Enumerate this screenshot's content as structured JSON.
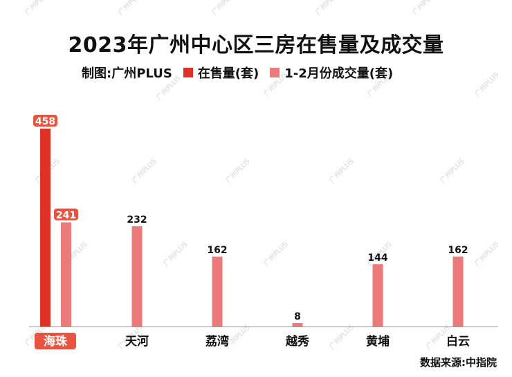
{
  "title": "2023年广州中心区三房在售量及成交量",
  "legend": {
    "maker": "制图:广州PLUS",
    "series": [
      {
        "label": "在售量(套)",
        "color": "#e03127"
      },
      {
        "label": "1-2月份成交量(套)",
        "color": "#ec7a7a"
      }
    ]
  },
  "source": "数据来源:中指院",
  "watermark": "广州PLUS",
  "chart_data": {
    "type": "bar",
    "title": "2023年广州中心区三房在售量及成交量",
    "categories": [
      "海珠",
      "天河",
      "荔湾",
      "越秀",
      "黄埔",
      "白云"
    ],
    "series": [
      {
        "name": "在售量(套)",
        "values": [
          458,
          null,
          null,
          null,
          null,
          null
        ],
        "color": "#e03127"
      },
      {
        "name": "1-2月份成交量(套)",
        "values": [
          241,
          232,
          162,
          8,
          144,
          162
        ],
        "color": "#ec7a7a"
      }
    ],
    "ylim": [
      0,
      458
    ],
    "highlight_category": "海珠",
    "highlight_color": "#e8543f",
    "grid": false,
    "legend_position": "top"
  }
}
